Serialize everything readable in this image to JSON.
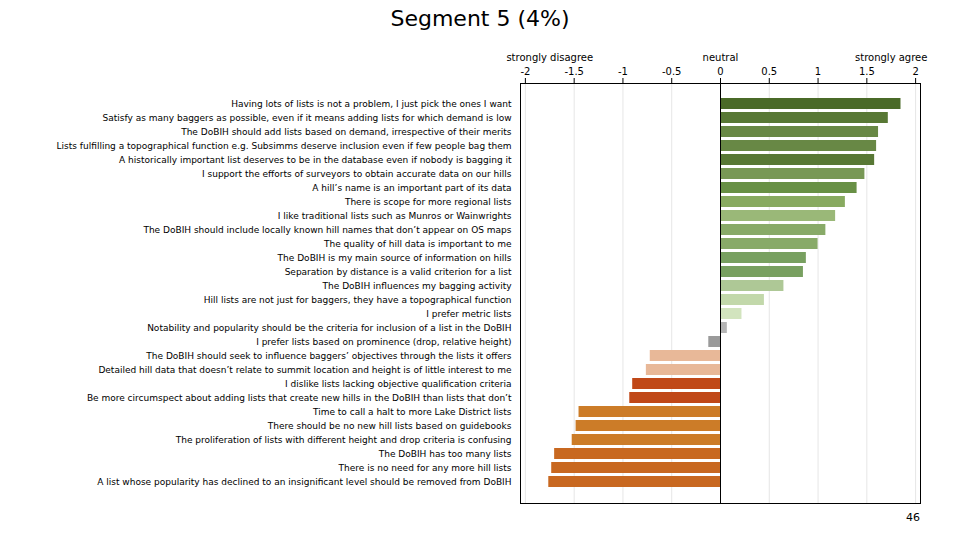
{
  "chart_data": {
    "type": "bar",
    "orientation": "horizontal",
    "title": "Segment 5 (4%)",
    "caption": "46",
    "categories": [
      "Having lots of lists is not a problem, I just pick the ones I want",
      "Satisfy as many baggers as possible, even if it means adding lists for which demand is low",
      "The DoBIH should add lists based on demand, irrespective of their merits",
      "Lists fulfilling a topographical function e.g. Subsimms deserve inclusion even if few people bag them",
      "A historically important list deserves to be in the database even if nobody is bagging it",
      "I support the efforts of surveyors to obtain accurate data on our hills",
      "A hill’s name is an important part of its data",
      "There is scope for more regional lists",
      "I like traditional lists such as Munros or Wainwrights",
      "The DoBIH should include locally known hill names that don’t appear on OS maps",
      "The quality of hill data is important to me",
      "The DoBIH is my main source of information on hills",
      "Separation by distance is a valid criterion for a list",
      "The DoBIH influences my bagging activity",
      "Hill lists are not just for baggers, they have a topographical function",
      "I prefer metric lists",
      "Notability and popularity should be the criteria for inclusion of a list in the DoBIH",
      "I prefer lists based on prominence (drop, relative height)",
      "The DoBIH should seek to influence baggers’ objectives through the lists it offers",
      "Detailed hill data that doesn’t relate to summit location and height is of little interest to me",
      "I dislike lists lacking objective qualification criteria",
      "Be more circumspect about adding lists that create new hills in the DoBIH than lists that don’t",
      "Time to call a halt to more Lake District lists",
      "There should be no new hill lists based on guidebooks",
      "The proliferation of lists with different height and drop criteria is confusing",
      "The DoBIH has too many lists",
      "There is no need for any more hill lists",
      "A list whose popularity has declined to an insignificant level should be removed from DoBIH"
    ],
    "values": [
      1.85,
      1.72,
      1.62,
      1.6,
      1.58,
      1.48,
      1.4,
      1.28,
      1.18,
      1.08,
      1.0,
      0.88,
      0.85,
      0.65,
      0.45,
      0.22,
      0.07,
      -0.12,
      -0.72,
      -0.76,
      -0.9,
      -0.93,
      -1.45,
      -1.48,
      -1.52,
      -1.7,
      -1.73,
      -1.76
    ],
    "colors": [
      "#4a6a28",
      "#587835",
      "#688845",
      "#688845",
      "#587835",
      "#789855",
      "#689045",
      "#88aa60",
      "#9ab878",
      "#88aa68",
      "#88aa68",
      "#78a060",
      "#78a060",
      "#aec896",
      "#c2d8aa",
      "#d2e4be",
      "#b5b5b5",
      "#9a9a9a",
      "#e8b898",
      "#e8b898",
      "#c04818",
      "#c04818",
      "#cc7c28",
      "#cc7c28",
      "#cc7c28",
      "#c86820",
      "#c86820",
      "#c86820"
    ],
    "xlim": [
      -2.05,
      2.05
    ],
    "xticks": [
      -2,
      -1.5,
      -1,
      -0.5,
      0,
      0.5,
      1,
      1.5,
      2
    ],
    "grid": true,
    "annotations": [
      {
        "text": "strongly disagree",
        "x": -1.75
      },
      {
        "text": "neutral",
        "x": 0
      },
      {
        "text": "strongly agree",
        "x": 1.75
      }
    ]
  }
}
